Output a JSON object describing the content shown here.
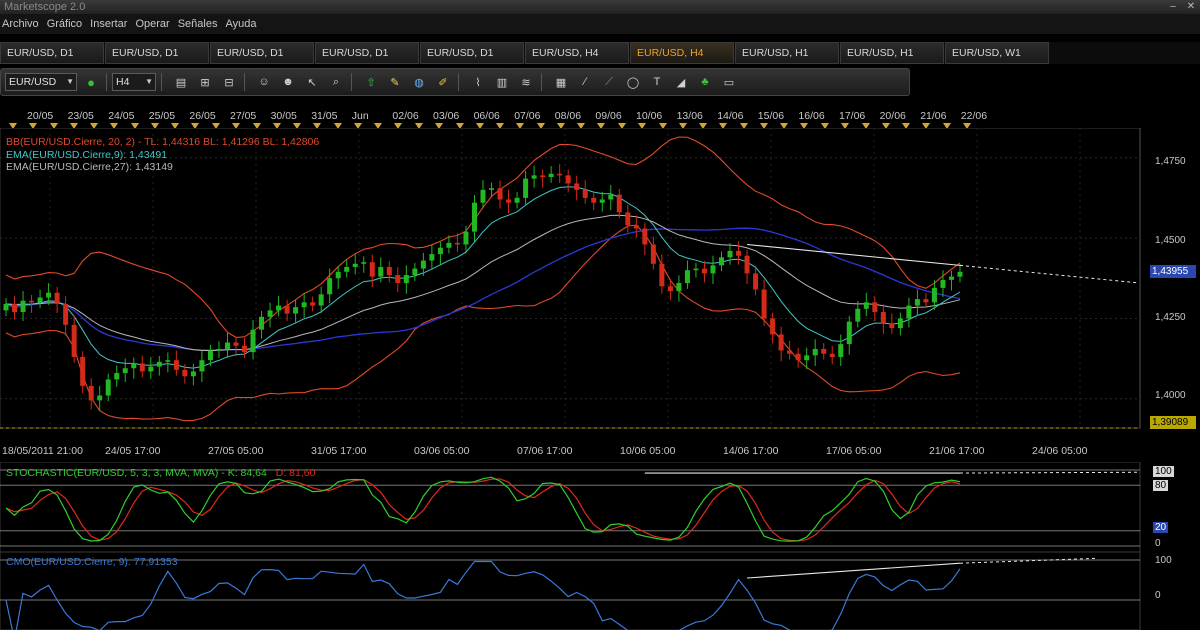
{
  "app": {
    "title": "Marketscope 2.0"
  },
  "menu": [
    "Archivo",
    "Gráfico",
    "Insertar",
    "Operar",
    "Señales",
    "Ayuda"
  ],
  "tabs": [
    {
      "label": "EUR/USD, D1",
      "active": false
    },
    {
      "label": "EUR/USD, D1",
      "active": false
    },
    {
      "label": "EUR/USD, D1",
      "active": false
    },
    {
      "label": "EUR/USD, D1",
      "active": false
    },
    {
      "label": "EUR/USD, D1",
      "active": false
    },
    {
      "label": "EUR/USD, H4",
      "active": false
    },
    {
      "label": "EUR/USD, H4",
      "active": true
    },
    {
      "label": "EUR/USD, H1",
      "active": false
    },
    {
      "label": "EUR/USD, H1",
      "active": false
    },
    {
      "label": "EUR/USD, W1",
      "active": false
    }
  ],
  "toolbar": {
    "symbol_value": "EUR/USD",
    "timeframe_value": "H4",
    "icons": [
      "status-dot-icon",
      "bar-chart-icon",
      "zoom-in-icon",
      "zoom-out-icon",
      "person-icon",
      "person-minus-icon",
      "cursor-icon",
      "magnifier-icon",
      "buy-arrow-icon",
      "note-icon",
      "globe-icon",
      "pencil-icon",
      "chart-line-icon",
      "candles-icon",
      "fib-icon",
      "calculator-icon",
      "trend-line-icon",
      "pen-icon",
      "ellipse-icon",
      "text-icon",
      "eraser-icon",
      "tree-icon",
      "trash-icon"
    ]
  },
  "date_scale": [
    "20/05",
    "23/05",
    "24/05",
    "25/05",
    "26/05",
    "27/05",
    "30/05",
    "31/05",
    "Jun",
    "02/06",
    "03/06",
    "06/06",
    "07/06",
    "08/06",
    "09/06",
    "10/06",
    "13/06",
    "14/06",
    "15/06",
    "16/06",
    "17/06",
    "20/06",
    "21/06",
    "22/06"
  ],
  "main_panel": {
    "legend": [
      {
        "text": "BB(EUR/USD.Cierre, 20, 2) -  TL: 1,44316  BL: 1,41296  BL: 1,42806",
        "color": "#e04a2a"
      },
      {
        "text": "EMA(EUR/USD.Cierre,9): 1,43491",
        "color": "#40c8c8"
      },
      {
        "text": "EMA(EUR/USD.Cierre,27): 1,43149",
        "color": "#b8b8b8"
      }
    ],
    "price_axis": [
      "1,4750",
      "1,4500",
      "1,4250",
      "1,4000"
    ],
    "current_price": "1,43955",
    "low_price": "1,39089",
    "time_axis": [
      "18/05/2011 21:00",
      "24/05 17:00",
      "27/05 05:00",
      "31/05 17:00",
      "03/06 05:00",
      "07/06 17:00",
      "10/06 05:00",
      "14/06 17:00",
      "17/06 05:00",
      "21/06 17:00",
      "24/06 05:00"
    ]
  },
  "stoch_panel": {
    "legend_main": "STOCHASTIC(EUR/USD, 5, 3, 3, MVA, MVA) -  K: 84,64",
    "legend_d": "D: 81,60",
    "axis": [
      "100",
      "80",
      "20",
      "0"
    ]
  },
  "cmo_panel": {
    "legend": "CMO(EUR/USD.Cierre, 9): 77,91353",
    "axis": [
      "100",
      "0"
    ]
  },
  "colors": {
    "bullish": "#22b822",
    "bearish": "#d42a1a",
    "bollinger": "#e04a2a",
    "ema9": "#40c8c8",
    "ema27": "#b8b8b8",
    "basis": "#2a38d8",
    "stoch_k": "#2ed02e",
    "stoch_d": "#e02a1a",
    "cmo": "#3a7ad8",
    "price_tag": "#2a48b0",
    "low_tag": "#b8a800"
  },
  "chart_data": {
    "type": "candlestick",
    "symbol": "EUR/USD",
    "timeframe": "H4",
    "ylim": [
      1.3909,
      1.483
    ],
    "closes": [
      1.4295,
      1.427,
      1.4305,
      1.43,
      1.4315,
      1.433,
      1.4295,
      1.423,
      1.413,
      1.404,
      1.3995,
      1.401,
      1.406,
      1.408,
      1.4095,
      1.411,
      1.4085,
      1.41,
      1.4115,
      1.412,
      1.409,
      1.407,
      1.4085,
      1.412,
      1.415,
      1.4155,
      1.4175,
      1.4165,
      1.4145,
      1.4215,
      1.4255,
      1.4275,
      1.429,
      1.4265,
      1.4285,
      1.43,
      1.429,
      1.4325,
      1.4375,
      1.4395,
      1.441,
      1.442,
      1.4425,
      1.438,
      1.441,
      1.4385,
      1.436,
      1.4385,
      1.4405,
      1.443,
      1.445,
      1.447,
      1.4485,
      1.448,
      1.452,
      1.461,
      1.465,
      1.4655,
      1.462,
      1.461,
      1.4625,
      1.4685,
      1.4695,
      1.469,
      1.47,
      1.4695,
      1.467,
      1.465,
      1.4625,
      1.461,
      1.462,
      1.4635,
      1.458,
      1.454,
      1.453,
      1.448,
      1.442,
      1.435,
      1.4335,
      1.436,
      1.44,
      1.4405,
      1.439,
      1.4415,
      1.444,
      1.446,
      1.4445,
      1.439,
      1.434,
      1.425,
      1.42,
      1.415,
      1.414,
      1.412,
      1.4135,
      1.4155,
      1.414,
      1.413,
      1.417,
      1.424,
      1.428,
      1.43,
      1.427,
      1.4235,
      1.422,
      1.425,
      1.429,
      1.431,
      1.43,
      1.4345,
      1.437,
      1.438,
      1.4395
    ],
    "bollinger": {
      "period": 20,
      "deviations": 2,
      "top": 1.44316,
      "bottom": 1.41296,
      "basis": 1.42806
    },
    "ema9": 1.43491,
    "ema27": 1.43149,
    "trendline_from": 1.448,
    "trendline_to": 1.4415,
    "stochastic": {
      "k": 84.64,
      "d": 81.6,
      "levels": [
        20,
        80
      ],
      "ylim": [
        0,
        100
      ]
    },
    "cmo": {
      "period": 9,
      "value": 77.91353,
      "ylim": [
        -100,
        100
      ]
    }
  }
}
